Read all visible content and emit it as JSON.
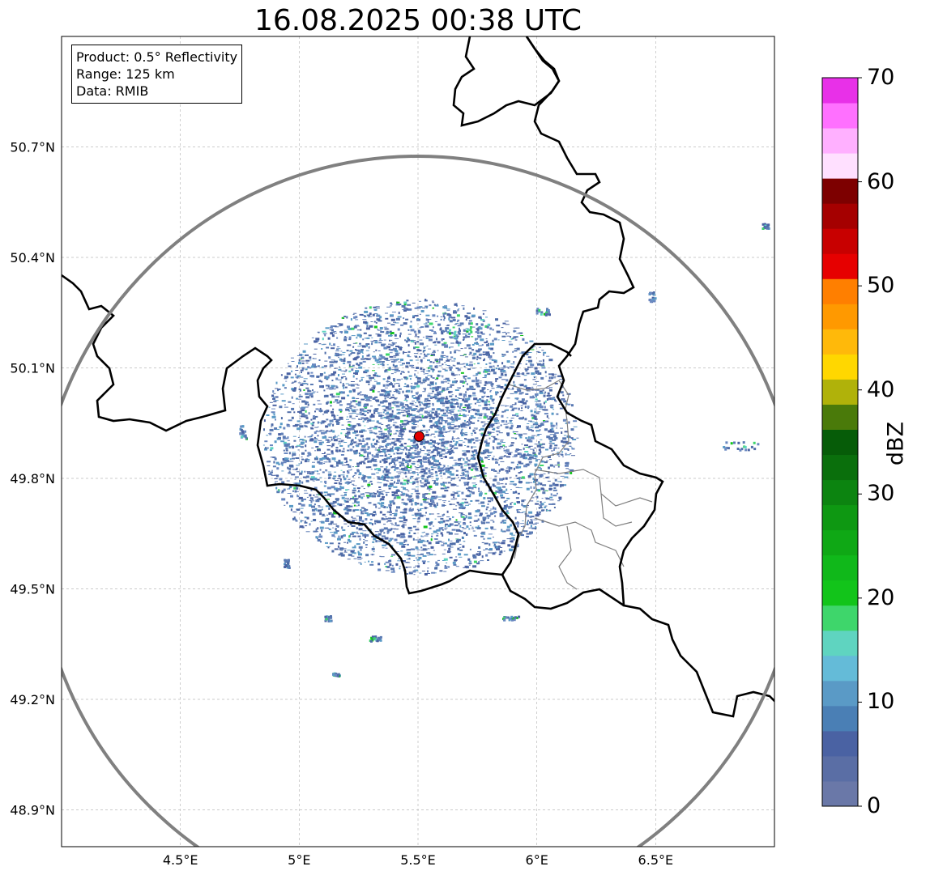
{
  "title": "16.08.2025 00:38 UTC",
  "info": {
    "product": "Product: 0.5° Reflectivity",
    "range": "Range: 125 km",
    "source": "Data: RMIB"
  },
  "map": {
    "lon_range": [
      4.0,
      7.0
    ],
    "lat_range": [
      48.8,
      51.0
    ],
    "lon_ticks": [
      {
        "value": 4.5,
        "label": "4.5°E"
      },
      {
        "value": 5.0,
        "label": "5°E"
      },
      {
        "value": 5.5,
        "label": "5.5°E"
      },
      {
        "value": 6.0,
        "label": "6°E"
      },
      {
        "value": 6.5,
        "label": "6.5°E"
      }
    ],
    "lat_ticks": [
      {
        "value": 50.7,
        "label": "50.7°N"
      },
      {
        "value": 50.4,
        "label": "50.4°N"
      },
      {
        "value": 50.1,
        "label": "50.1°N"
      },
      {
        "value": 49.8,
        "label": "49.8°N"
      },
      {
        "value": 49.5,
        "label": "49.5°N"
      },
      {
        "value": 49.2,
        "label": "49.2°N"
      },
      {
        "value": 48.9,
        "label": "48.9°N"
      }
    ],
    "radar_site": {
      "lon": 5.505,
      "lat": 49.914,
      "color": "#e00000"
    },
    "range_ring_color": "#808080",
    "grid": true,
    "borders_color": "#000000",
    "admin_borders_color": "#808080"
  },
  "colorbar": {
    "label": "dBZ",
    "min": 0,
    "max": 70,
    "ticks": [
      {
        "value": 70,
        "label": "70"
      },
      {
        "value": 60,
        "label": "60"
      },
      {
        "value": 50,
        "label": "50"
      },
      {
        "value": 40,
        "label": "40"
      },
      {
        "value": 30,
        "label": "30"
      },
      {
        "value": 20,
        "label": "20"
      },
      {
        "value": 10,
        "label": "10"
      },
      {
        "value": 0,
        "label": "0"
      }
    ],
    "colors": [
      "#6a78a8",
      "#5a6ea5",
      "#4a62a3",
      "#4a7fb5",
      "#5a9ac6",
      "#64bbd8",
      "#5fd4c0",
      "#3ed66b",
      "#12c41a",
      "#10b81a",
      "#0fa815",
      "#0e9812",
      "#0c8410",
      "#0a6f0c",
      "#065c08",
      "#4a7a0a",
      "#b0b20a",
      "#ffd700",
      "#ffb90a",
      "#ff9900",
      "#ff7f00",
      "#e60000",
      "#c80000",
      "#a50000",
      "#7d0000",
      "#ffe0ff",
      "#ffb0ff",
      "#ff70ff",
      "#e830e8"
    ]
  }
}
